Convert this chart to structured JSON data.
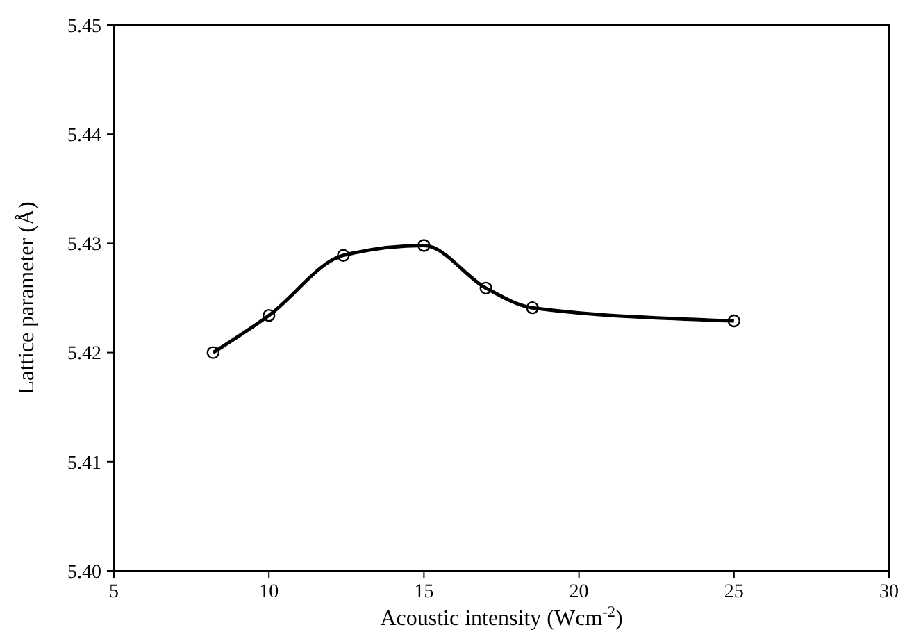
{
  "chart_data": {
    "type": "line",
    "xlabel": "Acoustic intensity (Wcm$^{-2}$)",
    "ylabel": "Lattice parameter (Å)",
    "x": [
      8.2,
      10,
      12.4,
      15,
      17,
      18.5,
      25
    ],
    "series": [
      {
        "color": "#000000",
        "values": [
          5.42,
          5.4234,
          5.4289,
          5.4298,
          5.4259,
          5.4241,
          5.4229
        ]
      }
    ],
    "xlim": [
      5,
      30
    ],
    "xticks": [
      5,
      10,
      15,
      20,
      25,
      30
    ],
    "ylim": [
      5.4,
      5.45
    ],
    "yticks": [
      {
        "value": 5.4,
        "label": "5.40"
      },
      5.41,
      5.42,
      5.43,
      5.44,
      5.45
    ],
    "grid": false,
    "marker": "circle",
    "line_style": "solid"
  }
}
